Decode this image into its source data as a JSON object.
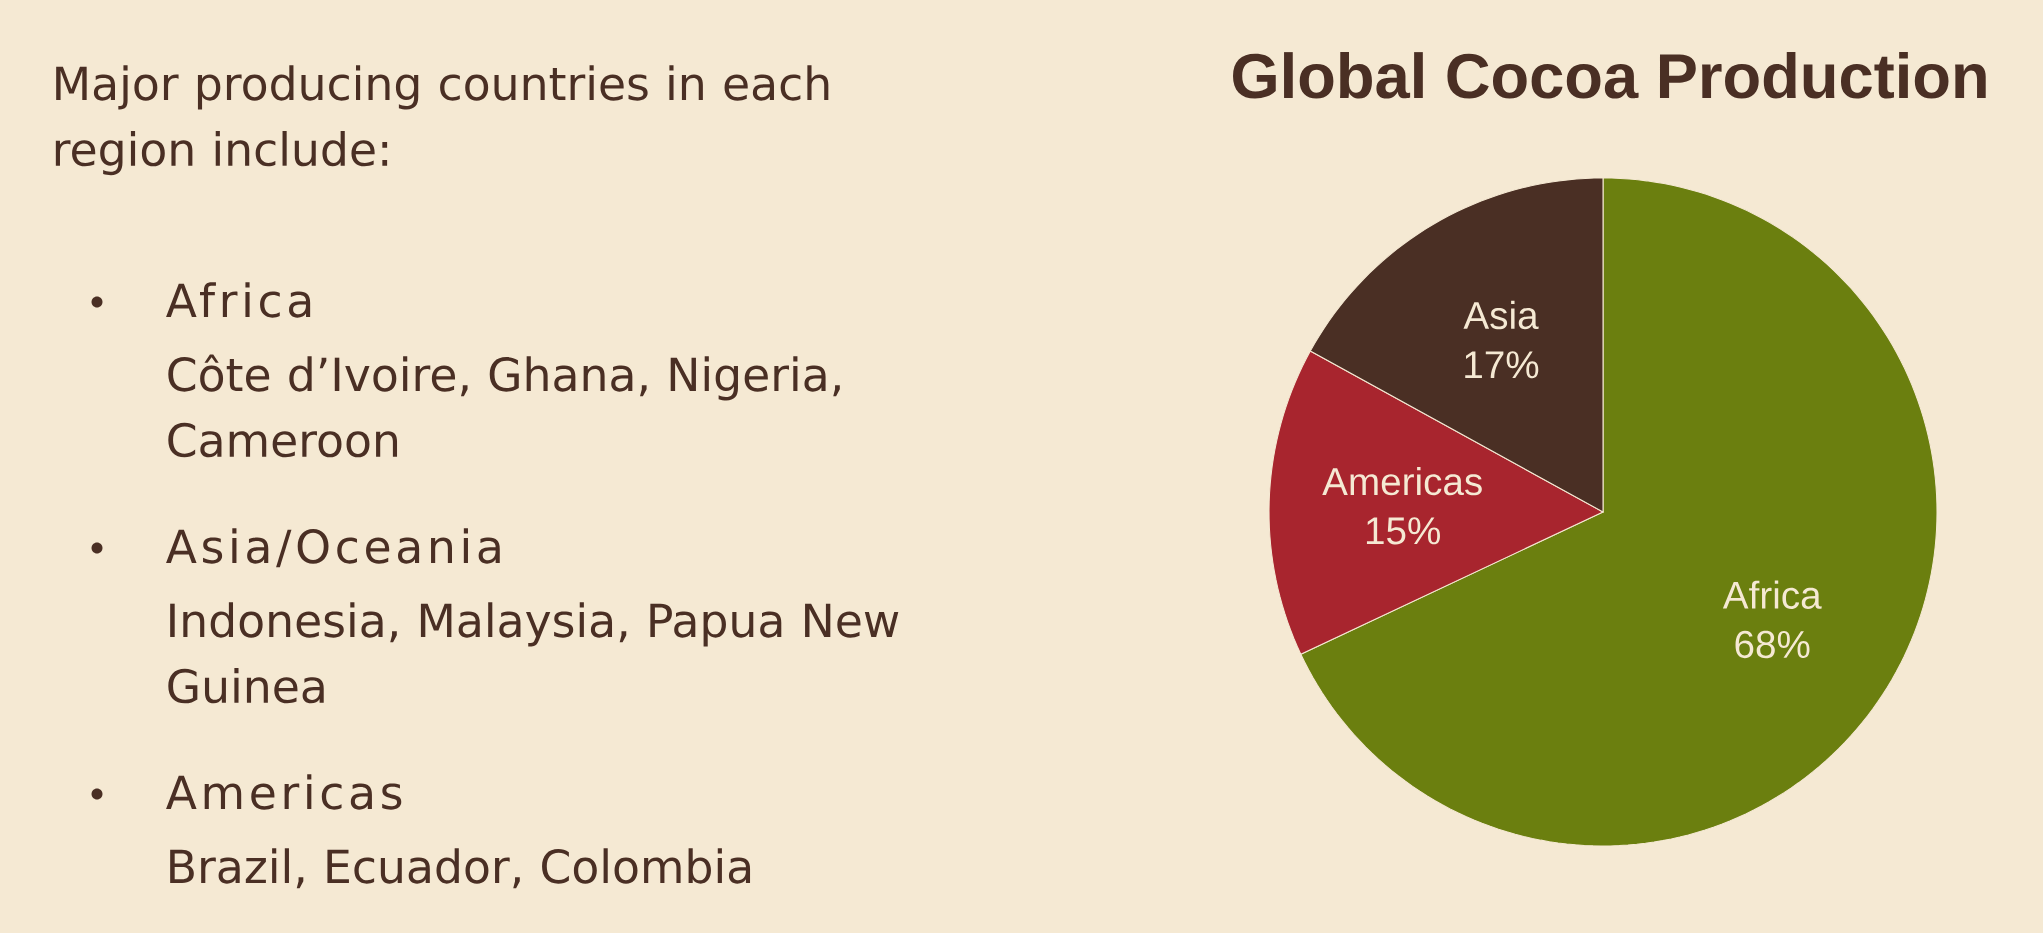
{
  "chart_data": {
    "type": "pie",
    "title": "Global Cocoa Production",
    "categories": [
      "Africa",
      "Americas",
      "Asia"
    ],
    "values": [
      68,
      15,
      17
    ],
    "value_labels": [
      "68%",
      "15%",
      "17%"
    ],
    "colors": [
      "#6b7f0f",
      "#a8252e",
      "#4a2f24"
    ],
    "annotations": [
      "Major producing countries in each region include:",
      "Africa",
      "Côte d’Ivoire, Ghana, Nigeria, Cameroon",
      "Asia/Oceania",
      "Indonesia, Malaysia, Papua New Guinea",
      "Americas",
      "Brazil, Ecuador, Colombia"
    ]
  }
}
